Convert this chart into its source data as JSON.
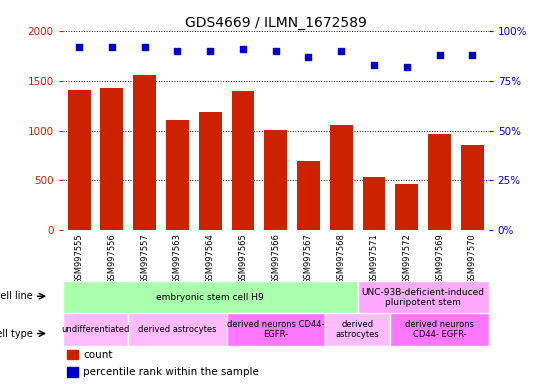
{
  "title": "GDS4669 / ILMN_1672589",
  "samples": [
    "GSM997555",
    "GSM997556",
    "GSM997557",
    "GSM997563",
    "GSM997564",
    "GSM997565",
    "GSM997566",
    "GSM997567",
    "GSM997568",
    "GSM997571",
    "GSM997572",
    "GSM997569",
    "GSM997570"
  ],
  "counts": [
    1410,
    1430,
    1560,
    1110,
    1190,
    1400,
    1005,
    700,
    1055,
    530,
    460,
    970,
    855
  ],
  "percentiles": [
    92,
    92,
    92,
    90,
    90,
    91,
    90,
    87,
    90,
    83,
    82,
    88,
    88
  ],
  "bar_color": "#cc2200",
  "dot_color": "#0000cc",
  "ylim_left": [
    0,
    2000
  ],
  "ylim_right": [
    0,
    100
  ],
  "yticks_left": [
    0,
    500,
    1000,
    1500,
    2000
  ],
  "yticks_right": [
    0,
    25,
    50,
    75,
    100
  ],
  "cell_line_groups": [
    {
      "label": "embryonic stem cell H9",
      "start": 0,
      "end": 9,
      "color": "#aaffaa"
    },
    {
      "label": "UNC-93B-deficient-induced\npluripotent stem",
      "start": 9,
      "end": 13,
      "color": "#ffaaff"
    }
  ],
  "cell_type_groups": [
    {
      "label": "undifferentiated",
      "start": 0,
      "end": 2,
      "color": "#ffbbff"
    },
    {
      "label": "derived astrocytes",
      "start": 2,
      "end": 5,
      "color": "#ffbbff"
    },
    {
      "label": "derived neurons CD44-\nEGFR-",
      "start": 5,
      "end": 8,
      "color": "#ff77ff"
    },
    {
      "label": "derived\nastrocytes",
      "start": 8,
      "end": 10,
      "color": "#ffbbff"
    },
    {
      "label": "derived neurons\nCD44- EGFR-",
      "start": 10,
      "end": 13,
      "color": "#ff77ff"
    }
  ],
  "legend_count_color": "#cc2200",
  "legend_pct_color": "#0000cc",
  "bg_color": "#ffffff",
  "plot_bg": "#ffffff",
  "axis_label_color_left": "#cc2200",
  "axis_label_color_right": "#0000cc",
  "xticklabel_bg": "#dddddd"
}
